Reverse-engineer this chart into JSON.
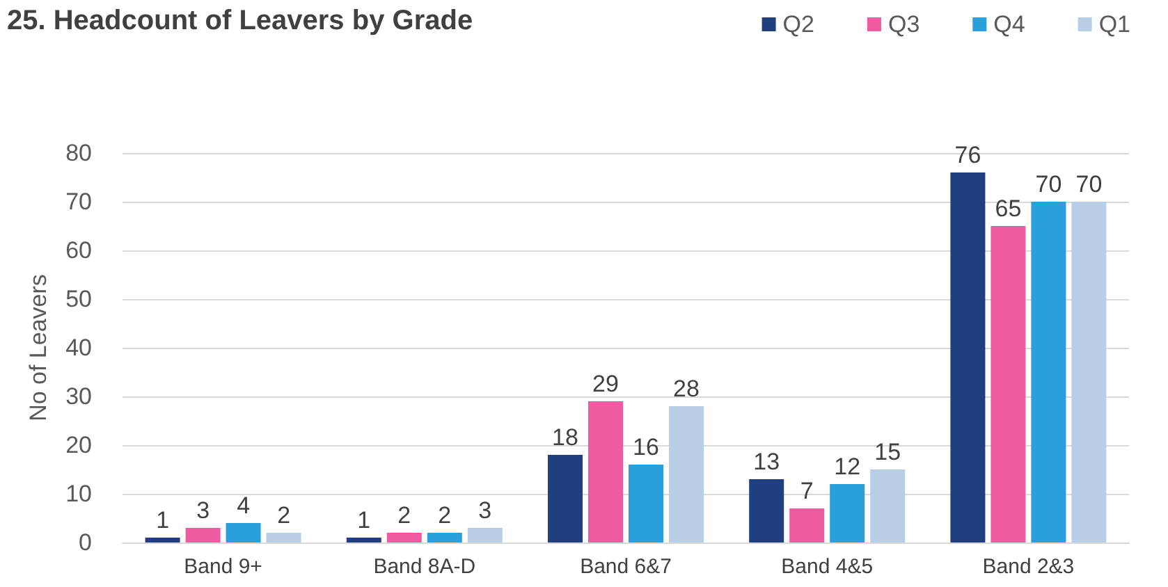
{
  "chart_data": {
    "type": "bar",
    "title": "25. Headcount of Leavers by Grade",
    "ylabel": "No of Leavers",
    "categories": [
      "Band 9+",
      "Band 8A-D",
      "Band 6&7",
      "Band 4&5",
      "Band 2&3"
    ],
    "series": [
      {
        "name": "Q2",
        "color": "#203f7f",
        "values": [
          1,
          1,
          18,
          13,
          76
        ]
      },
      {
        "name": "Q3",
        "color": "#ef5ba1",
        "values": [
          3,
          2,
          29,
          7,
          65
        ]
      },
      {
        "name": "Q4",
        "color": "#299fdb",
        "values": [
          4,
          2,
          16,
          12,
          70
        ]
      },
      {
        "name": "Q1",
        "color": "#b8cde6",
        "values": [
          2,
          3,
          28,
          15,
          70
        ]
      }
    ],
    "ylim": [
      0,
      80
    ],
    "yticks": [
      0,
      10,
      20,
      30,
      40,
      50,
      60,
      70,
      80
    ],
    "grid": "y",
    "legend": "top right",
    "data_labels": true
  }
}
